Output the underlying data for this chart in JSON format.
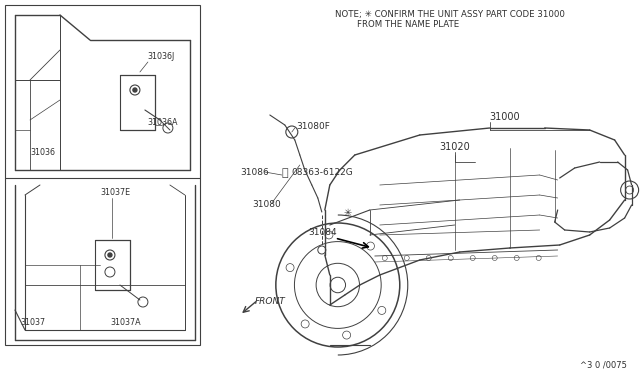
{
  "bg_color": "#ffffff",
  "line_color": "#404040",
  "text_color": "#303030",
  "note_line1": "NOTE; ✳ CONFIRM THE UNIT ASSY PART CODE 31000",
  "note_line2": "        FROM THE NAME PLATE",
  "part_number_br": "^3 0 /0075",
  "front_label": "FRONT"
}
